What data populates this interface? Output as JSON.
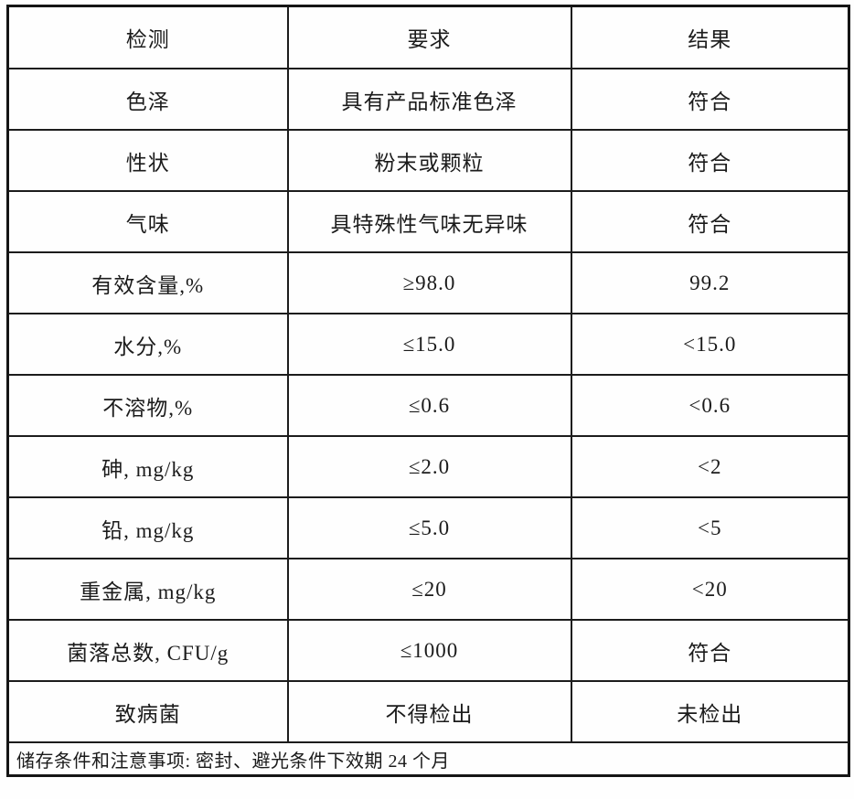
{
  "table": {
    "headers": [
      "检测",
      "要求",
      "结果"
    ],
    "rows": [
      [
        "色泽",
        "具有产品标准色泽",
        "符合"
      ],
      [
        "性状",
        "粉末或颗粒",
        "符合"
      ],
      [
        "气味",
        "具特殊性气味无异味",
        "符合"
      ],
      [
        "有效含量,%",
        "≥98.0",
        "99.2"
      ],
      [
        "水分,%",
        "≤15.0",
        "<15.0"
      ],
      [
        "不溶物,%",
        "≤0.6",
        "<0.6"
      ],
      [
        "砷, mg/kg",
        "≤2.0",
        "<2"
      ],
      [
        "铅, mg/kg",
        "≤5.0",
        "<5"
      ],
      [
        "重金属, mg/kg",
        "≤20",
        "<20"
      ],
      [
        "菌落总数, CFU/g",
        "≤1000",
        "符合"
      ],
      [
        "致病菌",
        "不得检出",
        "未检出"
      ]
    ],
    "footer_note": "储存条件和注意事项: 密封、避光条件下效期 24 个月"
  },
  "colors": {
    "border": "#1c1c1c",
    "background": "#fefefe",
    "text": "#1b1b1b"
  }
}
